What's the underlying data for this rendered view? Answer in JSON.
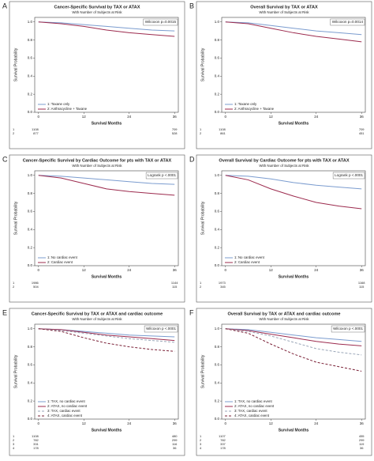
{
  "chart_data": [
    {
      "type": "line",
      "label": "A",
      "title": "Cancer-Specific Survival by TAX or ATAX",
      "subtitle": "With Number of Subjects at Risk",
      "y_label": "Survival Probability",
      "x_label": "Survival Months",
      "annotation": "Wilcoxon p=0.0015",
      "x": [
        0,
        6,
        12,
        18,
        24,
        30,
        36
      ],
      "xlim": [
        -1,
        37
      ],
      "xticks": [
        0,
        12,
        24,
        36
      ],
      "ylim": [
        0,
        1.05
      ],
      "yticks": [
        {
          "value": 0,
          "label": "0.0"
        },
        {
          "value": 0.2,
          "label": "0.2"
        },
        {
          "value": 0.4,
          "label": "0.4"
        },
        {
          "value": 0.6,
          "label": "0.6"
        },
        {
          "value": 0.8,
          "label": "0.8"
        },
        {
          "value": 1,
          "label": "1.0"
        }
      ],
      "series": [
        {
          "name": "1: Taxane only",
          "color": "#7b9ccf",
          "dashed": false,
          "values": [
            1.0,
            0.99,
            0.97,
            0.95,
            0.93,
            0.91,
            0.9
          ]
        },
        {
          "name": "2: Anthracycline + Taxane",
          "color": "#9c2b4e",
          "dashed": false,
          "values": [
            1.0,
            0.98,
            0.95,
            0.91,
            0.88,
            0.86,
            0.84
          ]
        }
      ],
      "risk_table": [
        {
          "group": "1",
          "values": [
            1108,
            709
          ]
        },
        {
          "group": "2",
          "values": [
            877,
            528
          ]
        }
      ]
    },
    {
      "type": "line",
      "label": "B",
      "title": "Overall Survival by TAX or ATAX",
      "subtitle": "With Number of Subjects at Risk",
      "y_label": "Survival Probability",
      "x_label": "Survival Months",
      "annotation": "Wilcoxon p=0.0014",
      "x": [
        0,
        6,
        12,
        18,
        24,
        30,
        36
      ],
      "xlim": [
        -1,
        37
      ],
      "xticks": [
        0,
        12,
        24,
        36
      ],
      "ylim": [
        0,
        1.05
      ],
      "yticks": [
        {
          "value": 0,
          "label": "0.0"
        },
        {
          "value": 0.2,
          "label": "0.2"
        },
        {
          "value": 0.4,
          "label": "0.4"
        },
        {
          "value": 0.6,
          "label": "0.6"
        },
        {
          "value": 0.8,
          "label": "0.8"
        },
        {
          "value": 1,
          "label": "1.0"
        }
      ],
      "series": [
        {
          "name": "1: Taxane only",
          "color": "#7b9ccf",
          "dashed": false,
          "values": [
            1.0,
            0.99,
            0.96,
            0.93,
            0.9,
            0.88,
            0.86
          ]
        },
        {
          "name": "2: Anthracycline + Taxane",
          "color": "#9c2b4e",
          "dashed": false,
          "values": [
            1.0,
            0.98,
            0.93,
            0.88,
            0.84,
            0.81,
            0.78
          ]
        }
      ],
      "risk_table": [
        {
          "group": "1",
          "values": [
            1108,
            709
          ]
        },
        {
          "group": "2",
          "values": [
            861,
            451
          ]
        }
      ]
    },
    {
      "type": "line",
      "label": "C",
      "title": "Cancer-Specific Survival by Cardiac Outcome for pts with TAX or ATAX",
      "subtitle": "With Number of Subjects at Risk",
      "y_label": "Survival Probability",
      "x_label": "Survival Months",
      "annotation": "Logrank p <.0001",
      "x": [
        0,
        6,
        12,
        18,
        24,
        30,
        36
      ],
      "xlim": [
        -1,
        37
      ],
      "xticks": [
        0,
        12,
        24,
        36
      ],
      "ylim": [
        0,
        1.05
      ],
      "yticks": [
        {
          "value": 0,
          "label": "0.0"
        },
        {
          "value": 0.2,
          "label": "0.2"
        },
        {
          "value": 0.4,
          "label": "0.4"
        },
        {
          "value": 0.6,
          "label": "0.6"
        },
        {
          "value": 0.8,
          "label": "0.8"
        },
        {
          "value": 1,
          "label": "1.0"
        }
      ],
      "series": [
        {
          "name": "1: No cardiac event",
          "color": "#7b9ccf",
          "dashed": false,
          "values": [
            1.0,
            0.99,
            0.97,
            0.95,
            0.93,
            0.91,
            0.9
          ]
        },
        {
          "name": "2: Cardiac event",
          "color": "#9c2b4e",
          "dashed": false,
          "values": [
            1.0,
            0.97,
            0.91,
            0.85,
            0.82,
            0.8,
            0.78
          ]
        }
      ],
      "risk_table": [
        {
          "group": "1",
          "values": [
            1986,
            1144
          ]
        },
        {
          "group": "2",
          "values": [
            504,
            115
          ]
        }
      ]
    },
    {
      "type": "line",
      "label": "D",
      "title": "Overall Survival by Cardiac Outcome for pts with TAX or ATAX",
      "subtitle": "With Number of Subjects at Risk",
      "y_label": "Survival Probability",
      "x_label": "Survival Months",
      "annotation": "Logrank p <.0001",
      "x": [
        0,
        6,
        12,
        18,
        24,
        30,
        36
      ],
      "xlim": [
        -1,
        37
      ],
      "xticks": [
        0,
        12,
        24,
        36
      ],
      "ylim": [
        0,
        1.05
      ],
      "yticks": [
        {
          "value": 0,
          "label": "0.0"
        },
        {
          "value": 0.2,
          "label": "0.2"
        },
        {
          "value": 0.4,
          "label": "0.4"
        },
        {
          "value": 0.6,
          "label": "0.6"
        },
        {
          "value": 0.8,
          "label": "0.8"
        },
        {
          "value": 1,
          "label": "1.0"
        }
      ],
      "series": [
        {
          "name": "1: No cardiac event",
          "color": "#7b9ccf",
          "dashed": false,
          "values": [
            1.0,
            0.99,
            0.96,
            0.92,
            0.89,
            0.87,
            0.85
          ]
        },
        {
          "name": "2: Cardiac event",
          "color": "#9c2b4e",
          "dashed": false,
          "values": [
            1.0,
            0.95,
            0.85,
            0.77,
            0.7,
            0.66,
            0.63
          ]
        }
      ],
      "risk_table": [
        {
          "group": "1",
          "values": [
            1973,
            1168
          ]
        },
        {
          "group": "2",
          "values": [
            345,
            115
          ]
        }
      ]
    },
    {
      "type": "line",
      "label": "E",
      "title": "Cancer-Specific Survival by TAX or ATAX and cardiac outcome",
      "subtitle": "With Number of Subjects at Risk",
      "y_label": "Survival Probability",
      "x_label": "Survival Months",
      "annotation": "Wilcoxon p <.0001",
      "x": [
        0,
        6,
        12,
        18,
        24,
        30,
        36
      ],
      "xlim": [
        -1,
        37
      ],
      "xticks": [
        0,
        12,
        24,
        36
      ],
      "ylim": [
        0,
        1.05
      ],
      "yticks": [
        {
          "value": 0,
          "label": "0.0"
        },
        {
          "value": 0.2,
          "label": "0.2"
        },
        {
          "value": 0.4,
          "label": "0.4"
        },
        {
          "value": 0.6,
          "label": "0.6"
        },
        {
          "value": 0.8,
          "label": "0.8"
        },
        {
          "value": 1,
          "label": "1.0"
        }
      ],
      "series": [
        {
          "name": "1: TAX, no cardiac event",
          "color": "#7b9ccf",
          "dashed": false,
          "values": [
            1.0,
            0.99,
            0.97,
            0.95,
            0.93,
            0.92,
            0.91
          ]
        },
        {
          "name": "2: ATAX, no cardiac event",
          "color": "#9c2b4e",
          "dashed": false,
          "values": [
            1.0,
            0.99,
            0.96,
            0.93,
            0.91,
            0.89,
            0.87
          ]
        },
        {
          "name": "3: TAX, cardiac event",
          "color": "#9aa6b8",
          "dashed": true,
          "values": [
            1.0,
            0.98,
            0.95,
            0.92,
            0.89,
            0.87,
            0.85
          ]
        },
        {
          "name": "4: ATAX, cardiac event",
          "color": "#7a2036",
          "dashed": true,
          "values": [
            1.0,
            0.97,
            0.9,
            0.84,
            0.8,
            0.77,
            0.75
          ]
        }
      ],
      "risk_table": [
        {
          "group": "1",
          "values": [
            1108,
            480
          ]
        },
        {
          "group": "2",
          "values": [
            782,
            299
          ]
        },
        {
          "group": "3",
          "values": [
            331,
            116
          ]
        },
        {
          "group": "4",
          "values": [
            178,
            36
          ]
        }
      ]
    },
    {
      "type": "line",
      "label": "F",
      "title": "Overall Survival by TAX or ATAX and cardiac outcome",
      "subtitle": "With Number of Subjects at Risk",
      "y_label": "Survival Probability",
      "x_label": "Survival Months",
      "annotation": "Wilcoxon p <.0001",
      "x": [
        0,
        6,
        12,
        18,
        24,
        30,
        36
      ],
      "xlim": [
        -1,
        37
      ],
      "xticks": [
        0,
        12,
        24,
        36
      ],
      "ylim": [
        0,
        1.05
      ],
      "yticks": [
        {
          "value": 0,
          "label": "0.0"
        },
        {
          "value": 0.2,
          "label": "0.2"
        },
        {
          "value": 0.4,
          "label": "0.4"
        },
        {
          "value": 0.6,
          "label": "0.6"
        },
        {
          "value": 0.8,
          "label": "0.8"
        },
        {
          "value": 1,
          "label": "1.0"
        }
      ],
      "series": [
        {
          "name": "1: TAX, no cardiac event",
          "color": "#7b9ccf",
          "dashed": false,
          "values": [
            1.0,
            0.99,
            0.96,
            0.93,
            0.9,
            0.88,
            0.86
          ]
        },
        {
          "name": "2: ATAX, no cardiac event",
          "color": "#9c2b4e",
          "dashed": false,
          "values": [
            1.0,
            0.98,
            0.94,
            0.9,
            0.86,
            0.83,
            0.81
          ]
        },
        {
          "name": "3: TAX, cardiac event",
          "color": "#9aa6b8",
          "dashed": true,
          "values": [
            1.0,
            0.97,
            0.92,
            0.85,
            0.78,
            0.74,
            0.71
          ]
        },
        {
          "name": "4: ATAX, cardiac event",
          "color": "#7a2036",
          "dashed": true,
          "values": [
            1.0,
            0.95,
            0.83,
            0.72,
            0.63,
            0.58,
            0.53
          ]
        }
      ],
      "risk_table": [
        {
          "group": "1",
          "values": [
            1107,
            455
          ]
        },
        {
          "group": "2",
          "values": [
            782,
            299
          ]
        },
        {
          "group": "3",
          "values": [
            337,
            119
          ]
        },
        {
          "group": "4",
          "values": [
            178,
            36
          ]
        }
      ]
    }
  ]
}
